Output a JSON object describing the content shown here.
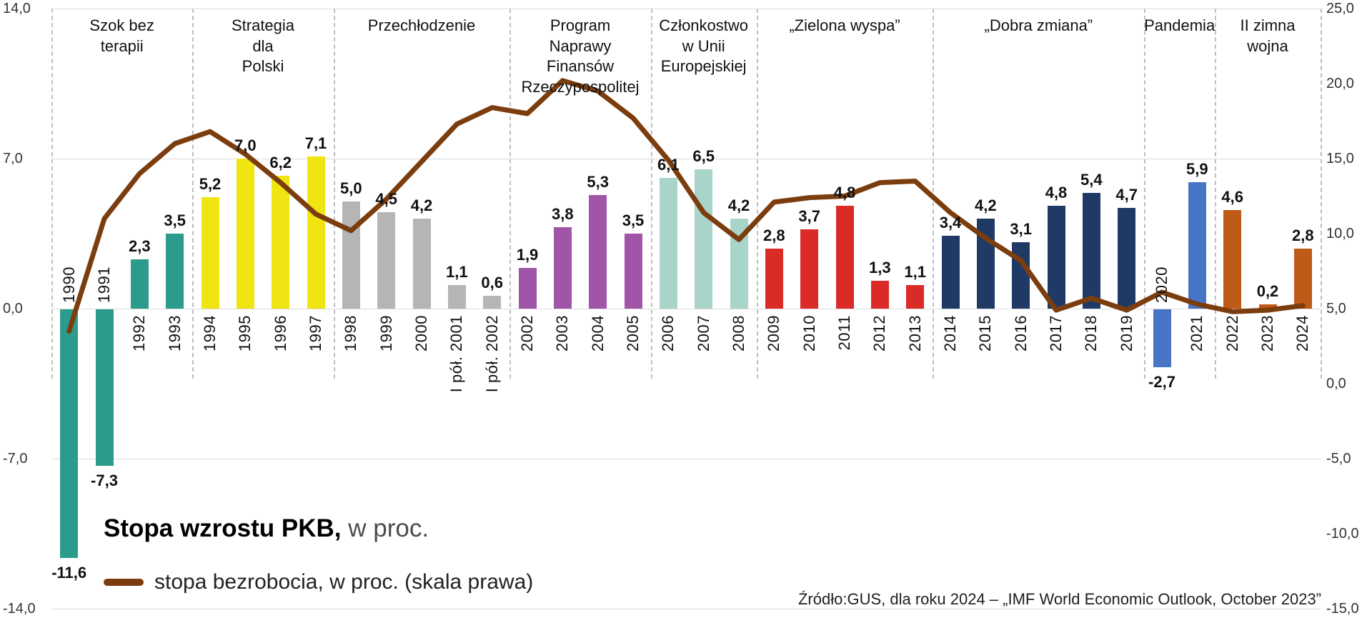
{
  "chart_data": {
    "type": "bar+line",
    "title": "Stopa wzrostu PKB, w proc.",
    "legend": {
      "bars_label_bold": "Stopa wzrostu PKB,",
      "bars_label_rest": " w proc.",
      "line_label": "stopa bezrobocia, w proc. (skala prawa)"
    },
    "source": "Źródło:GUS, dla roku 2024 – „IMF World Economic Outlook, October 2023”",
    "left_axis": {
      "tick_labels": [
        "14,0",
        "7,0",
        "0,0",
        "-7,0",
        "-14,0"
      ],
      "tick_values": [
        14,
        7,
        0,
        -7,
        -14
      ],
      "range": [
        -14,
        14
      ]
    },
    "right_axis": {
      "tick_labels": [
        "25,0",
        "20,0",
        "15,0",
        "10,0",
        "5,0",
        "0,0",
        "-5,0",
        "-10,0",
        "-15,0"
      ],
      "tick_values": [
        25,
        20,
        15,
        10,
        5,
        0,
        -5,
        -10,
        -15
      ],
      "range": [
        -15,
        25
      ]
    },
    "eras": [
      {
        "name": "Szok bez terapii",
        "lines": [
          "Szok bez",
          "terapii"
        ],
        "start_index": 0,
        "bar_count": 4,
        "bar_color": "#2B9C8C"
      },
      {
        "name": "Strategia dla Polski",
        "lines": [
          "Strategia",
          "dla",
          "Polski"
        ],
        "start_index": 4,
        "bar_count": 4,
        "bar_color": "#F0E412"
      },
      {
        "name": "Przechłodzenie",
        "lines": [
          "Przechłodzenie"
        ],
        "start_index": 8,
        "bar_count": 5,
        "bar_color": "#B5B5B5"
      },
      {
        "name": "Program Naprawy Finansów Rzeczypospolitej",
        "lines": [
          "Program",
          "Naprawy",
          "Finansów",
          "Rzeczypospolitej"
        ],
        "start_index": 13,
        "bar_count": 4,
        "bar_color": "#A055A8"
      },
      {
        "name": "Członkostwo w Unii Europejskiej",
        "lines": [
          "Członkostwo",
          "w Unii",
          "Europejskiej"
        ],
        "start_index": 17,
        "bar_count": 3,
        "bar_color": "#A8D4CA"
      },
      {
        "name": "„Zielona wyspa”",
        "lines": [
          "„Zielona wyspa”"
        ],
        "start_index": 20,
        "bar_count": 5,
        "bar_color": "#DB2B27"
      },
      {
        "name": "„Dobra zmiana”",
        "lines": [
          "„Dobra zmiana”"
        ],
        "start_index": 25,
        "bar_count": 6,
        "bar_color": "#203A66"
      },
      {
        "name": "Pandemia",
        "lines": [
          "Pandemia"
        ],
        "start_index": 31,
        "bar_count": 2,
        "bar_color": "#4874C8"
      },
      {
        "name": "II zimna wojna",
        "lines": [
          "II zimna",
          "wojna"
        ],
        "start_index": 33,
        "bar_count": 3,
        "bar_color": "#C05A18"
      }
    ],
    "bars": [
      {
        "label": "1990",
        "value": -11.6,
        "display": "-11,6"
      },
      {
        "label": "1991",
        "value": -7.3,
        "display": "-7,3"
      },
      {
        "label": "1992",
        "value": 2.3,
        "display": "2,3"
      },
      {
        "label": "1993",
        "value": 3.5,
        "display": "3,5"
      },
      {
        "label": "1994",
        "value": 5.2,
        "display": "5,2"
      },
      {
        "label": "1995",
        "value": 7.0,
        "display": "7,0"
      },
      {
        "label": "1996",
        "value": 6.2,
        "display": "6,2"
      },
      {
        "label": "1997",
        "value": 7.1,
        "display": "7,1"
      },
      {
        "label": "1998",
        "value": 5.0,
        "display": "5,0"
      },
      {
        "label": "1999",
        "value": 4.5,
        "display": "4,5"
      },
      {
        "label": "2000",
        "value": 4.2,
        "display": "4,2"
      },
      {
        "label": "I pół. 2001",
        "value": 1.1,
        "display": "1,1"
      },
      {
        "label": "I pół. 2002",
        "value": 0.6,
        "display": "0,6"
      },
      {
        "label": "2002",
        "value": 1.9,
        "display": "1,9"
      },
      {
        "label": "2003",
        "value": 3.8,
        "display": "3,8"
      },
      {
        "label": "2004",
        "value": 5.3,
        "display": "5,3"
      },
      {
        "label": "2005",
        "value": 3.5,
        "display": "3,5"
      },
      {
        "label": "2006",
        "value": 6.1,
        "display": "6,1"
      },
      {
        "label": "2007",
        "value": 6.5,
        "display": "6,5"
      },
      {
        "label": "2008",
        "value": 4.2,
        "display": "4,2"
      },
      {
        "label": "2009",
        "value": 2.8,
        "display": "2,8"
      },
      {
        "label": "2010",
        "value": 3.7,
        "display": "3,7"
      },
      {
        "label": "2011",
        "value": 4.8,
        "display": "4,8"
      },
      {
        "label": "2012",
        "value": 1.3,
        "display": "1,3"
      },
      {
        "label": "2013",
        "value": 1.1,
        "display": "1,1"
      },
      {
        "label": "2014",
        "value": 3.4,
        "display": "3,4"
      },
      {
        "label": "2015",
        "value": 4.2,
        "display": "4,2"
      },
      {
        "label": "2016",
        "value": 3.1,
        "display": "3,1"
      },
      {
        "label": "2017",
        "value": 4.8,
        "display": "4,8"
      },
      {
        "label": "2018",
        "value": 5.4,
        "display": "5,4"
      },
      {
        "label": "2019",
        "value": 4.7,
        "display": "4,7"
      },
      {
        "label": "2020",
        "value": -2.7,
        "display": "-2,7"
      },
      {
        "label": "2021",
        "value": 5.9,
        "display": "5,9"
      },
      {
        "label": "2022",
        "value": 4.6,
        "display": "4,6"
      },
      {
        "label": "2023",
        "value": 0.2,
        "display": "0,2"
      },
      {
        "label": "2024",
        "value": 2.8,
        "display": "2,8"
      }
    ],
    "line_series": {
      "name": "stopa bezrobocia",
      "color": "#7B3D0E",
      "scale": "right",
      "values": [
        3.5,
        11.0,
        14.0,
        16.0,
        16.8,
        15.3,
        13.4,
        11.3,
        10.2,
        12.3,
        14.8,
        17.3,
        18.4,
        18.0,
        20.2,
        19.5,
        17.7,
        14.9,
        11.4,
        9.6,
        12.1,
        12.4,
        12.5,
        13.4,
        13.5,
        11.4,
        9.7,
        8.2,
        4.9,
        5.7,
        4.9,
        6.1,
        5.3,
        4.8,
        4.9,
        5.2
      ]
    }
  }
}
